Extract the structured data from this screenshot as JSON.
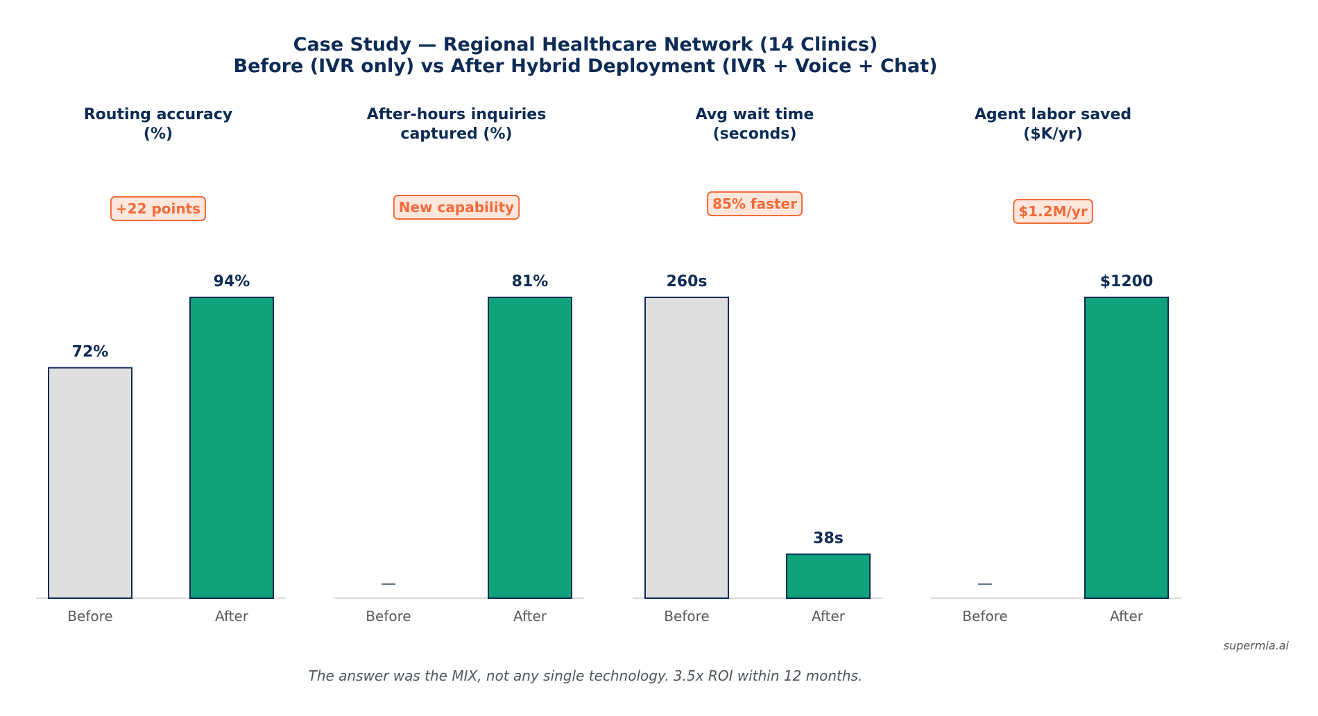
{
  "figure": {
    "title_line1": "Case Study — Regional Healthcare Network (14 Clinics)",
    "title_line2": "Before (IVR only) vs After Hybrid Deployment (IVR + Voice + Chat)",
    "footnote": "The answer was the MIX, not any single technology. 3.5x ROI within 12 months.",
    "credit": "supermia.ai"
  },
  "colors": {
    "before": "#dedede",
    "after": "#10a37b",
    "bar_edge": "#0d2b55",
    "badge_text": "#f26b3a",
    "badge_fill": "#fde6dc",
    "axis": "#cfcfcf",
    "dash": "#555555"
  },
  "chart_data": [
    {
      "type": "bar",
      "title_lines": [
        "Routing accuracy",
        "(%)"
      ],
      "badge": "+22 points",
      "categories": [
        "Before",
        "After"
      ],
      "values": [
        72,
        94
      ],
      "value_labels": [
        "72%",
        "94%"
      ],
      "ylim": [
        0,
        94
      ]
    },
    {
      "type": "bar",
      "title_lines": [
        "After-hours inquiries",
        "captured (%)"
      ],
      "badge": "New capability",
      "categories": [
        "Before",
        "After"
      ],
      "values": [
        0,
        81
      ],
      "value_labels": [
        "—",
        "81%"
      ],
      "ylim": [
        0,
        81
      ]
    },
    {
      "type": "bar",
      "title_lines": [
        "Avg wait time",
        "(seconds)"
      ],
      "badge": "85% faster",
      "categories": [
        "Before",
        "After"
      ],
      "values": [
        260,
        38
      ],
      "value_labels": [
        "260s",
        "38s"
      ],
      "ylim": [
        0,
        260
      ]
    },
    {
      "type": "bar",
      "title_lines": [
        "Agent labor saved",
        "($K/yr)"
      ],
      "badge": "$1.2M/yr",
      "categories": [
        "Before",
        "After"
      ],
      "values": [
        0,
        1200
      ],
      "value_labels": [
        "—",
        "$1200"
      ],
      "ylim": [
        0,
        1200
      ]
    }
  ]
}
